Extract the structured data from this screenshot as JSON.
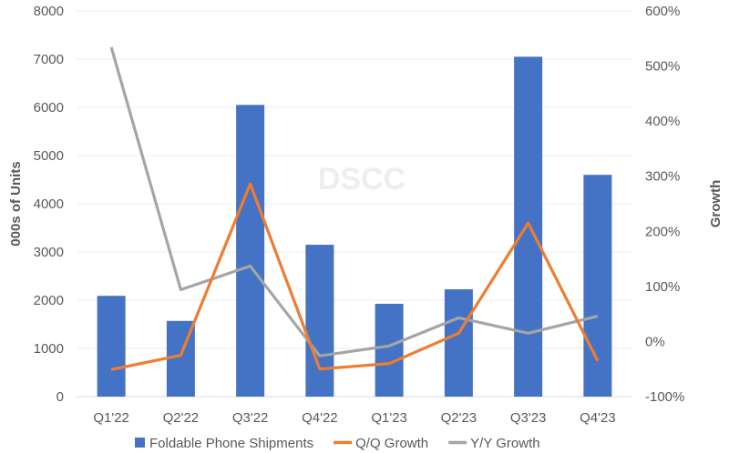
{
  "chart_data": {
    "type": "bar+line",
    "categories": [
      "Q1'22",
      "Q2'22",
      "Q3'22",
      "Q4'22",
      "Q1'23",
      "Q2'23",
      "Q3'23",
      "Q4'23"
    ],
    "series": [
      {
        "name": "Foldable Phone Shipments",
        "type": "bar",
        "axis": "left",
        "color": "#4472C4",
        "values": [
          2090,
          1570,
          6050,
          3150,
          1925,
          2225,
          7050,
          4600
        ]
      },
      {
        "name": "Q/Q Growth",
        "type": "line",
        "axis": "right",
        "color": "#ED7D31",
        "values": [
          -51,
          -25,
          286,
          -50,
          -40,
          15,
          215,
          -35
        ]
      },
      {
        "name": "Y/Y Growth",
        "type": "line",
        "axis": "right",
        "color": "#A5A5A5",
        "values": [
          534,
          94,
          137,
          -26,
          -8,
          43,
          15,
          46
        ]
      }
    ],
    "ylabel": "000s of Units",
    "y2label": "Growth",
    "ylim": [
      0,
      8000
    ],
    "y2lim": [
      -100,
      600
    ],
    "yticks": [
      "0",
      "1000",
      "2000",
      "3000",
      "4000",
      "5000",
      "6000",
      "7000",
      "8000"
    ],
    "y2ticks": [
      "-100%",
      "0%",
      "100%",
      "200%",
      "300%",
      "400%",
      "500%",
      "600%"
    ],
    "grid": true,
    "legend_position": "bottom",
    "watermark": "DSCC"
  }
}
